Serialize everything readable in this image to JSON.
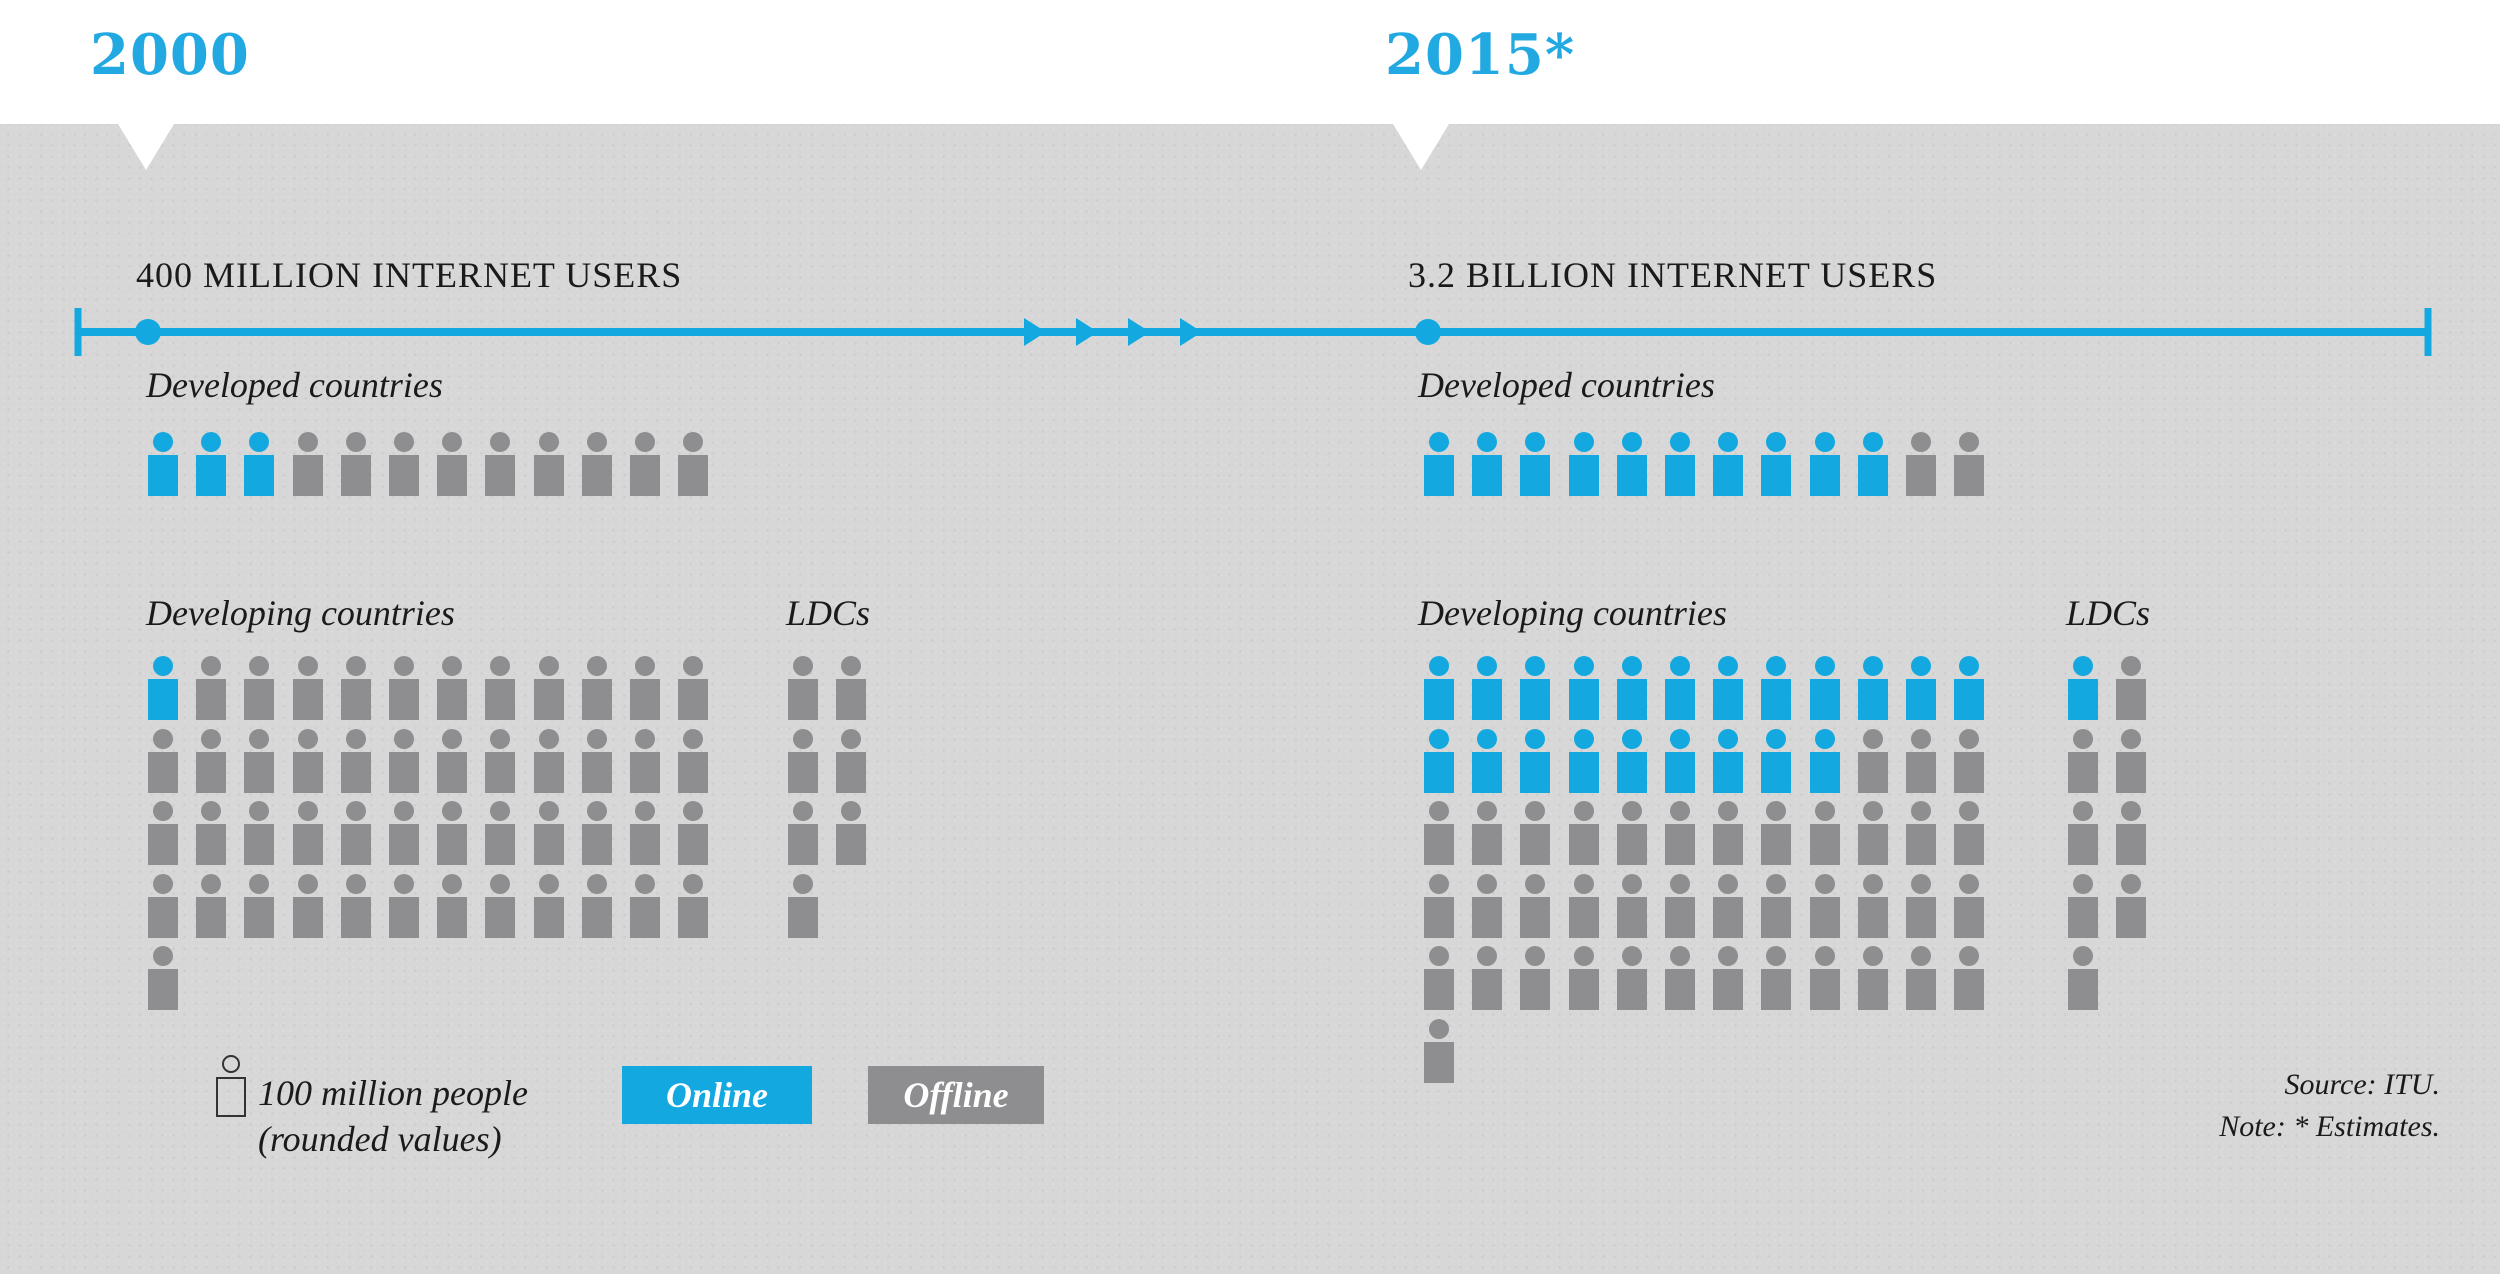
{
  "colors": {
    "online": "#13a8e0",
    "offline": "#8e8e90",
    "accent": "#22a9e1",
    "panel": "#d7d7d7"
  },
  "years": {
    "left": "2000",
    "right": "2015*"
  },
  "headings": {
    "left": "400 MILLION INTERNET USERS",
    "right": "3.2 BILLION INTERNET USERS"
  },
  "groups": {
    "developed": "Developed countries",
    "developing": "Developing countries",
    "ldcs": "LDCs"
  },
  "chart_data": {
    "type": "pictogram",
    "unit": "100 million people (rounded values)",
    "panels": [
      {
        "year": "2000",
        "total_users": "400 MILLION INTERNET USERS",
        "groups": [
          {
            "name": "Developed countries",
            "online": 3,
            "offline": 9,
            "per_row": 12
          },
          {
            "name": "Developing countries",
            "online": 1,
            "offline": 48,
            "per_row": 12
          },
          {
            "name": "LDCs",
            "online": 0,
            "offline": 7,
            "per_row": 2
          }
        ]
      },
      {
        "year": "2015*",
        "total_users": "3.2 BILLION INTERNET USERS",
        "groups": [
          {
            "name": "Developed countries",
            "online": 10,
            "offline": 2,
            "per_row": 12
          },
          {
            "name": "Developing countries",
            "online": 21,
            "offline": 40,
            "per_row": 12
          },
          {
            "name": "LDCs",
            "online": 1,
            "offline": 8,
            "per_row": 2
          }
        ]
      }
    ]
  },
  "legend": {
    "unit_line1": "100 million people",
    "unit_line2": "(rounded values)",
    "online": "Online",
    "offline": "Offline"
  },
  "source": {
    "line1": "Source: ITU.",
    "line2": "Note: * Estimates."
  }
}
